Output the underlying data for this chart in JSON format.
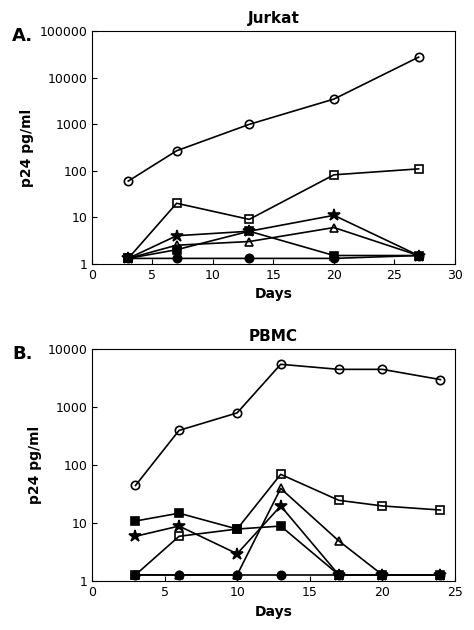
{
  "panel_A": {
    "title": "Jurkat",
    "xlabel": "Days",
    "ylabel": "p24 pg/ml",
    "xlim": [
      0,
      30
    ],
    "ylim": [
      1,
      100000
    ],
    "xticks": [
      0,
      5,
      10,
      15,
      20,
      25,
      30
    ],
    "yticks": [
      1,
      10,
      100,
      1000,
      10000,
      100000
    ],
    "ytick_labels": [
      "1",
      "10",
      "100",
      "1000",
      "10000",
      "100000"
    ],
    "series": [
      {
        "x": [
          3,
          7,
          13,
          20,
          27
        ],
        "y": [
          60,
          270,
          1000,
          3500,
          28000
        ],
        "marker": "o",
        "fillstyle": "none",
        "linewidth": 1.2,
        "markersize": 6
      },
      {
        "x": [
          3,
          7,
          13,
          20,
          27
        ],
        "y": [
          1.3,
          20,
          9,
          82,
          110
        ],
        "marker": "s",
        "fillstyle": "none",
        "linewidth": 1.2,
        "markersize": 6
      },
      {
        "x": [
          3,
          7,
          13,
          20,
          27
        ],
        "y": [
          1.3,
          4,
          5,
          11,
          1.5
        ],
        "marker": "*",
        "fillstyle": "full",
        "linewidth": 1.2,
        "markersize": 9
      },
      {
        "x": [
          3,
          7,
          13,
          20,
          27
        ],
        "y": [
          1.3,
          2.5,
          3,
          6,
          1.5
        ],
        "marker": "^",
        "fillstyle": "none",
        "linewidth": 1.2,
        "markersize": 6
      },
      {
        "x": [
          3,
          7,
          13,
          20,
          27
        ],
        "y": [
          1.3,
          2,
          5,
          1.5,
          1.5
        ],
        "marker": "s",
        "fillstyle": "full",
        "linewidth": 1.2,
        "markersize": 6
      },
      {
        "x": [
          3,
          7,
          13,
          20,
          27
        ],
        "y": [
          1.3,
          1.3,
          1.3,
          1.3,
          1.5
        ],
        "marker": "o",
        "fillstyle": "full",
        "linewidth": 1.2,
        "markersize": 6
      }
    ]
  },
  "panel_B": {
    "title": "PBMC",
    "xlabel": "Days",
    "ylabel": "p24 pg/ml",
    "xlim": [
      0,
      25
    ],
    "ylim": [
      1,
      10000
    ],
    "xticks": [
      0,
      5,
      10,
      15,
      20,
      25
    ],
    "yticks": [
      1,
      10,
      100,
      1000,
      10000
    ],
    "ytick_labels": [
      "1",
      "10",
      "100",
      "1000",
      "10000"
    ],
    "series": [
      {
        "x": [
          3,
          6,
          10,
          13,
          17,
          20,
          24
        ],
        "y": [
          45,
          400,
          800,
          5500,
          4500,
          4500,
          3000
        ],
        "marker": "o",
        "fillstyle": "none",
        "linewidth": 1.2,
        "markersize": 6
      },
      {
        "x": [
          3,
          6,
          10,
          13,
          17,
          20,
          24
        ],
        "y": [
          1.3,
          6,
          8,
          70,
          25,
          20,
          17
        ],
        "marker": "s",
        "fillstyle": "none",
        "linewidth": 1.2,
        "markersize": 6
      },
      {
        "x": [
          3,
          6,
          10,
          13,
          17,
          20,
          24
        ],
        "y": [
          11,
          15,
          8,
          9,
          1.3,
          1.3,
          1.3
        ],
        "marker": "s",
        "fillstyle": "full",
        "linewidth": 1.2,
        "markersize": 6
      },
      {
        "x": [
          3,
          6,
          10,
          13,
          17,
          20,
          24
        ],
        "y": [
          6,
          9,
          3,
          20,
          1.3,
          1.3,
          1.3
        ],
        "marker": "*",
        "fillstyle": "full",
        "linewidth": 1.2,
        "markersize": 9
      },
      {
        "x": [
          3,
          6,
          10,
          13,
          17,
          20,
          24
        ],
        "y": [
          1.3,
          1.3,
          1.3,
          40,
          5,
          1.3,
          1.3
        ],
        "marker": "^",
        "fillstyle": "none",
        "linewidth": 1.2,
        "markersize": 6
      },
      {
        "x": [
          3,
          6,
          10,
          13,
          17,
          20,
          24
        ],
        "y": [
          1.3,
          1.3,
          1.3,
          1.3,
          1.3,
          1.3,
          1.3
        ],
        "marker": "o",
        "fillstyle": "full",
        "linewidth": 1.2,
        "markersize": 6
      }
    ]
  },
  "label_A": "A.",
  "label_B": "B.",
  "label_fontsize": 13,
  "title_fontsize": 11,
  "axis_fontsize": 10,
  "tick_fontsize": 9
}
